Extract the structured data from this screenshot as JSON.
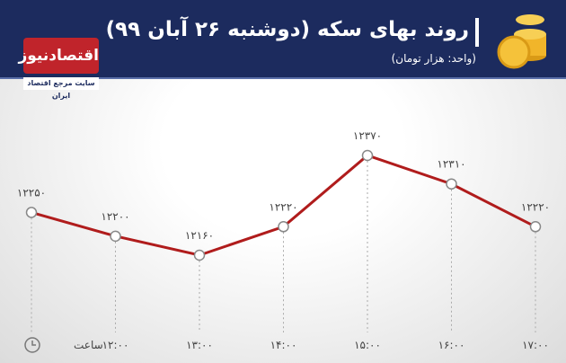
{
  "header": {
    "title": "روند بهای سکه (دوشنبه ۲۶ آبان ۹۹)",
    "subtitle": "(واحد: هزار تومان)",
    "logo": "اقتصادنیوز",
    "logo_tagline": "سایت مرجع اقتصاد ایران"
  },
  "chart_data": {
    "type": "line",
    "x_label": "ساعت",
    "categories": [
      null,
      "۱۲:۰۰",
      "۱۳:۰۰",
      "۱۴:۰۰",
      "۱۵:۰۰",
      "۱۶:۰۰",
      "۱۷:۰۰"
    ],
    "values": [
      12250,
      12200,
      12160,
      12220,
      12370,
      12310,
      12220
    ],
    "value_labels": [
      "۱۲۲۵۰",
      "۱۲۲۰۰",
      "۱۲۱۶۰",
      "۱۲۲۲۰",
      "۱۲۳۷۰",
      "۱۲۳۱۰",
      "۱۲۲۲۰"
    ],
    "color": "#b01c1c"
  }
}
